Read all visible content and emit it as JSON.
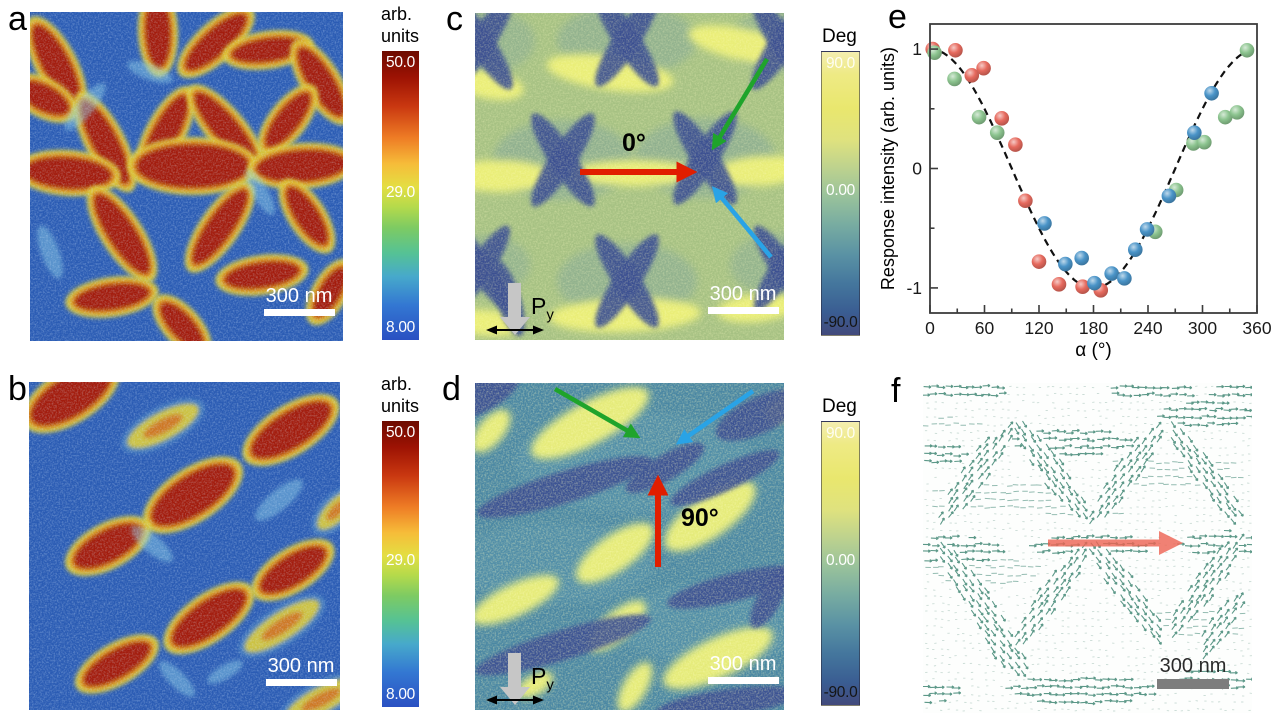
{
  "panels": {
    "a": {
      "label": "a"
    },
    "b": {
      "label": "b"
    },
    "c": {
      "label": "c",
      "angle_label": "0°"
    },
    "d": {
      "label": "d",
      "angle_label": "90°"
    },
    "e": {
      "label": "e"
    },
    "f": {
      "label": "f"
    }
  },
  "colorbar_amplitude": {
    "title_line1": "arb.",
    "title_line2": "units",
    "max": "50.0",
    "mid": "29.0",
    "min": "8.00"
  },
  "colorbar_phase": {
    "title": "Deg",
    "max": "90.0",
    "mid": "0.00",
    "min": "-90.0"
  },
  "scale_bar": {
    "label": "300 nm"
  },
  "polarization": {
    "symbol": "P",
    "subscript": "y"
  },
  "colors": {
    "arrow_red": "#e11e00",
    "arrow_green": "#1fa42b",
    "arrow_blue": "#29a3e6",
    "arrow_gray": "#c6c6c6",
    "quiver": "#4e8f7e",
    "quiver_highlight": "#ee6352",
    "amplitude_background": "#2b5cb4",
    "amplitude_domain": "#a31b0e",
    "amplitude_halo": "#dfcd35",
    "phase_background_c": "#a6c183",
    "phase_background_d": "#4a87a3",
    "phase_dark": "#3a4f92",
    "phase_yellow": "#eef178"
  },
  "chart_data": {
    "type": "scatter",
    "title": "",
    "xlabel": "α (°)",
    "ylabel": "Response intensity (arb. units)",
    "xlim": [
      0,
      360
    ],
    "ylim": [
      -1.21,
      1.21
    ],
    "xticks": [
      0,
      60,
      120,
      180,
      240,
      300,
      360
    ],
    "x_minor_step": 30,
    "yticks": [
      -1,
      0,
      1
    ],
    "y_minor_step": 0.5,
    "grid": false,
    "fit_curve": {
      "style": "dashed",
      "formula": "cos(alpha)",
      "amplitude": 1.0
    },
    "series": [
      {
        "name": "red",
        "color": "#e66a5e",
        "points": [
          [
            3,
            1.0
          ],
          [
            28,
            0.99
          ],
          [
            46,
            0.78
          ],
          [
            59,
            0.84
          ],
          [
            79,
            0.42
          ],
          [
            94,
            0.2
          ],
          [
            105,
            -0.27
          ],
          [
            120,
            -0.78
          ],
          [
            142,
            -0.97
          ],
          [
            168,
            -0.99
          ],
          [
            188,
            -1.02
          ]
        ]
      },
      {
        "name": "green",
        "color": "#8cc48f",
        "points": [
          [
            5,
            0.97
          ],
          [
            27,
            0.75
          ],
          [
            54,
            0.43
          ],
          [
            74,
            0.3
          ],
          [
            248,
            -0.53
          ],
          [
            271,
            -0.18
          ],
          [
            290,
            0.21
          ],
          [
            302,
            0.22
          ],
          [
            325,
            0.43
          ],
          [
            338,
            0.47
          ],
          [
            349,
            0.99
          ]
        ]
      },
      {
        "name": "blue",
        "color": "#4a94c8",
        "points": [
          [
            126,
            -0.46
          ],
          [
            149,
            -0.8
          ],
          [
            167,
            -0.75
          ],
          [
            181,
            -0.96
          ],
          [
            200,
            -0.88
          ],
          [
            214,
            -0.92
          ],
          [
            226,
            -0.68
          ],
          [
            239,
            -0.51
          ],
          [
            263,
            -0.23
          ],
          [
            291,
            0.3
          ],
          [
            310,
            0.63
          ]
        ]
      }
    ]
  }
}
